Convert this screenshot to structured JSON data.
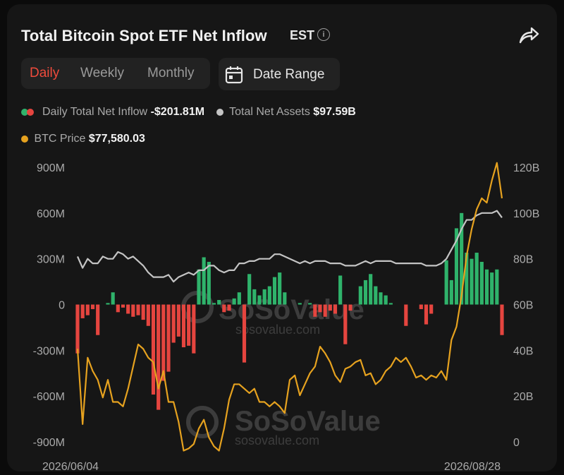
{
  "header": {
    "title": "Total Bitcoin Spot ETF Net Inflow",
    "timezone": "EST",
    "info_icon": "info-icon",
    "share_icon": "share-icon"
  },
  "tabs": [
    {
      "label": "Daily",
      "active": true
    },
    {
      "label": "Weekly",
      "active": false
    },
    {
      "label": "Monthly",
      "active": false
    }
  ],
  "date_range": {
    "label": "Date Range",
    "icon": "calendar-icon"
  },
  "legend": {
    "inflow_label": "Daily Total Net Inflow",
    "inflow_value": "-$201.81M",
    "assets_label": "Total Net Assets",
    "assets_value": "$97.59B",
    "btc_label": "BTC Price",
    "btc_value": "$77,580.03"
  },
  "watermark": {
    "brand": "SoSoValue",
    "url": "sosovalue.com"
  },
  "colors": {
    "positive": "#2fb36b",
    "negative": "#e5453f",
    "assets_line": "#c4c4c4",
    "btc_line": "#e6a21f",
    "accent": "#ef4b3c"
  },
  "chart_data": {
    "type": "bar",
    "title": "Total Bitcoin Spot ETF Net Inflow",
    "x_start_label": "2026/06/04",
    "x_end_label": "2026/08/28",
    "y_left_ticks": [
      "900M",
      "600M",
      "300M",
      "0",
      "-300M",
      "-600M",
      "-900M"
    ],
    "y_left_range": [
      -900,
      900
    ],
    "y_left_unit": "M",
    "y_right_ticks": [
      "120B",
      "100B",
      "80B",
      "60B",
      "40B",
      "20B",
      "0"
    ],
    "y_right_range": [
      0,
      120
    ],
    "y_right_unit": "B",
    "btc_price_range": [
      65000,
      127000
    ],
    "series": [
      {
        "name": "Daily Total Net Inflow",
        "kind": "bar",
        "values": [
          -320,
          -90,
          -70,
          -30,
          -200,
          0,
          10,
          80,
          -50,
          -20,
          -60,
          -80,
          -70,
          -100,
          -140,
          -590,
          -690,
          -500,
          -440,
          -250,
          -210,
          -280,
          -270,
          -320,
          230,
          310,
          280,
          10,
          30,
          -50,
          -40,
          40,
          80,
          -380,
          200,
          100,
          60,
          100,
          120,
          180,
          210,
          80,
          0,
          0,
          10,
          0,
          10,
          -80,
          -50,
          -80,
          -40,
          -60,
          190,
          -260,
          -40,
          0,
          120,
          160,
          200,
          120,
          80,
          60,
          10,
          0,
          0,
          -140,
          0,
          0,
          -30,
          -130,
          -60,
          0,
          0,
          290,
          160,
          500,
          600,
          340,
          300,
          340,
          280,
          230,
          210,
          230,
          -200
        ]
      },
      {
        "name": "Total Net Assets",
        "kind": "line",
        "values": [
          81,
          76,
          80,
          78,
          78,
          81,
          80,
          80,
          83,
          82,
          80,
          81,
          79,
          77,
          74,
          72,
          72,
          72,
          73,
          70,
          72,
          73,
          74,
          73,
          75,
          75,
          77,
          77,
          75,
          74,
          75,
          75,
          78,
          78,
          79,
          79,
          80,
          80,
          80,
          82,
          82,
          81,
          80,
          79,
          78,
          79,
          78,
          79,
          79,
          79,
          78,
          78,
          78,
          77,
          77,
          77,
          78,
          79,
          78,
          79,
          79,
          79,
          79,
          78,
          78,
          78,
          78,
          78,
          78,
          77,
          77,
          77,
          78,
          80,
          84,
          88,
          93,
          97,
          97,
          99,
          100,
          100,
          100,
          101,
          98
        ]
      },
      {
        "name": "BTC Price",
        "kind": "line",
        "values": [
          86000,
          69000,
          84000,
          81000,
          79000,
          75000,
          79000,
          74000,
          74000,
          73000,
          77000,
          82000,
          87000,
          86000,
          84000,
          83000,
          77000,
          81000,
          74000,
          74000,
          69500,
          63000,
          63500,
          64500,
          68000,
          70000,
          66000,
          64000,
          63000,
          68000,
          74500,
          78000,
          78000,
          77000,
          76000,
          77000,
          74000,
          74000,
          73000,
          74000,
          73000,
          71500,
          79000,
          80000,
          75500,
          78000,
          80500,
          82000,
          86500,
          85000,
          83000,
          80000,
          78500,
          81500,
          82000,
          83000,
          83500,
          80000,
          80500,
          78000,
          79000,
          81000,
          82000,
          84000,
          83000,
          84000,
          82000,
          79500,
          80000,
          79000,
          80000,
          79500,
          81000,
          79000,
          88000,
          91000,
          98000,
          107000,
          113000,
          117500,
          120000,
          119000,
          124000,
          128000,
          120000
        ]
      }
    ],
    "grid": false,
    "legend_position": "top-left"
  }
}
